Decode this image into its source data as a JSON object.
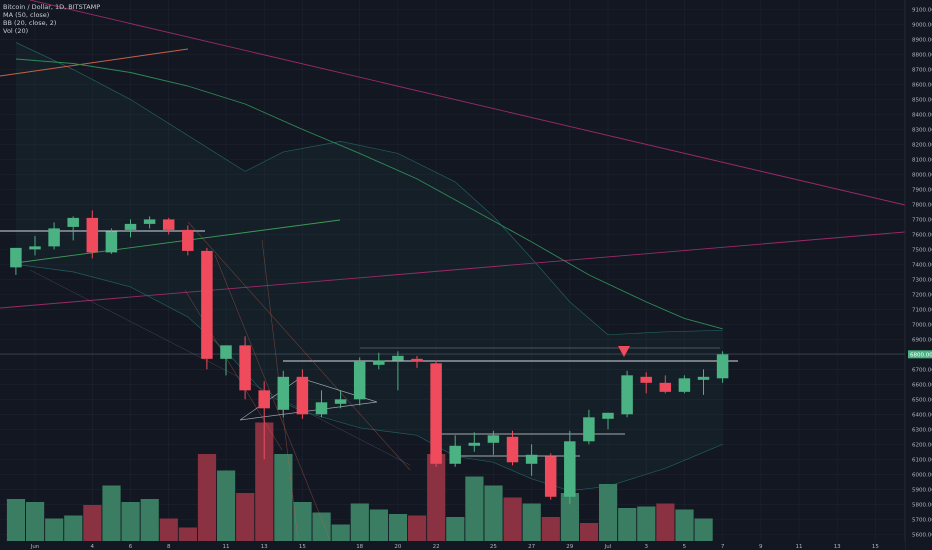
{
  "header": {
    "symbol_line": "Bitcoin / Dollar, 1D, BITSTAMP",
    "indicators": [
      "MA (50, close)",
      "BB (20, close, 2)",
      "Vol (20)"
    ]
  },
  "colors": {
    "background": "#131722",
    "grid": "#1e2230",
    "up": "#4bb283",
    "down": "#ef4b5d",
    "vol_up": "#3b7d62",
    "vol_down": "#8a3242",
    "ma": "#2e8b57",
    "bb": "#2a7a74",
    "trend_pink": "#9a2a6a",
    "trend_orange": "#c8604a",
    "trend_green": "#3d9a55",
    "level": "#d7d9df",
    "marker": "#ef4b5d",
    "last_price_bg": "#4bb283"
  },
  "chart_data": {
    "type": "candlestick",
    "y_axis": {
      "ticks": [
        5600,
        5700,
        5800,
        5900,
        6000,
        6100,
        6200,
        6300,
        6400,
        6500,
        6600,
        6700,
        6800,
        6900,
        7000,
        7100,
        7200,
        7300,
        7400,
        7500,
        7600,
        7700,
        7800,
        7900,
        8000,
        8100,
        8200,
        8300,
        8400,
        8500,
        8600,
        8700,
        8800,
        8900,
        9000,
        9100
      ],
      "range": [
        5555,
        9150
      ]
    },
    "x_axis": {
      "tick_labels": [
        {
          "label": "Jun",
          "day": 0
        },
        {
          "label": "4",
          "day": 3
        },
        {
          "label": "6",
          "day": 5
        },
        {
          "label": "8",
          "day": 7
        },
        {
          "label": "11",
          "day": 10
        },
        {
          "label": "13",
          "day": 12
        },
        {
          "label": "15",
          "day": 14
        },
        {
          "label": "18",
          "day": 17
        },
        {
          "label": "20",
          "day": 19
        },
        {
          "label": "22",
          "day": 21
        },
        {
          "label": "25",
          "day": 24
        },
        {
          "label": "27",
          "day": 26
        },
        {
          "label": "29",
          "day": 28
        },
        {
          "label": "Jul",
          "day": 30
        },
        {
          "label": "3",
          "day": 32
        },
        {
          "label": "5",
          "day": 34
        },
        {
          "label": "7",
          "day": 36
        },
        {
          "label": "9",
          "day": 38
        },
        {
          "label": "11",
          "day": 40
        },
        {
          "label": "13",
          "day": 42
        },
        {
          "label": "15",
          "day": 44
        }
      ]
    },
    "candles": [
      {
        "day": -1,
        "o": 7380,
        "h": 7480,
        "l": 7330,
        "c": 7510
      },
      {
        "day": 0,
        "o": 7500,
        "h": 7590,
        "l": 7460,
        "c": 7520
      },
      {
        "day": 1,
        "o": 7520,
        "h": 7680,
        "l": 7500,
        "c": 7640
      },
      {
        "day": 2,
        "o": 7650,
        "h": 7720,
        "l": 7560,
        "c": 7710
      },
      {
        "day": 3,
        "o": 7710,
        "h": 7760,
        "l": 7440,
        "c": 7480
      },
      {
        "day": 4,
        "o": 7480,
        "h": 7640,
        "l": 7470,
        "c": 7620
      },
      {
        "day": 5,
        "o": 7630,
        "h": 7700,
        "l": 7580,
        "c": 7670
      },
      {
        "day": 6,
        "o": 7670,
        "h": 7720,
        "l": 7640,
        "c": 7700
      },
      {
        "day": 7,
        "o": 7700,
        "h": 7710,
        "l": 7600,
        "c": 7630
      },
      {
        "day": 8,
        "o": 7630,
        "h": 7660,
        "l": 7460,
        "c": 7490
      },
      {
        "day": 9,
        "o": 7490,
        "h": 7510,
        "l": 6700,
        "c": 6770
      },
      {
        "day": 10,
        "o": 6770,
        "h": 6860,
        "l": 6660,
        "c": 6860
      },
      {
        "day": 11,
        "o": 6860,
        "h": 6920,
        "l": 6500,
        "c": 6560
      },
      {
        "day": 12,
        "o": 6560,
        "h": 6620,
        "l": 6100,
        "c": 6440
      },
      {
        "day": 13,
        "o": 6430,
        "h": 6690,
        "l": 6380,
        "c": 6650
      },
      {
        "day": 14,
        "o": 6650,
        "h": 6700,
        "l": 6370,
        "c": 6400
      },
      {
        "day": 15,
        "o": 6400,
        "h": 6560,
        "l": 6380,
        "c": 6480
      },
      {
        "day": 16,
        "o": 6470,
        "h": 6560,
        "l": 6440,
        "c": 6500
      },
      {
        "day": 17,
        "o": 6500,
        "h": 6780,
        "l": 6460,
        "c": 6750
      },
      {
        "day": 18,
        "o": 6730,
        "h": 6810,
        "l": 6700,
        "c": 6760
      },
      {
        "day": 19,
        "o": 6760,
        "h": 6820,
        "l": 6560,
        "c": 6790
      },
      {
        "day": 20,
        "o": 6770,
        "h": 6790,
        "l": 6710,
        "c": 6750
      },
      {
        "day": 21,
        "o": 6740,
        "h": 6760,
        "l": 6050,
        "c": 6070
      },
      {
        "day": 22,
        "o": 6070,
        "h": 6260,
        "l": 6050,
        "c": 6190
      },
      {
        "day": 23,
        "o": 6190,
        "h": 6280,
        "l": 6150,
        "c": 6210
      },
      {
        "day": 24,
        "o": 6210,
        "h": 6290,
        "l": 6130,
        "c": 6260
      },
      {
        "day": 25,
        "o": 6250,
        "h": 6290,
        "l": 6060,
        "c": 6080
      },
      {
        "day": 26,
        "o": 6070,
        "h": 6200,
        "l": 5990,
        "c": 6130
      },
      {
        "day": 27,
        "o": 6120,
        "h": 6140,
        "l": 5830,
        "c": 5850
      },
      {
        "day": 28,
        "o": 5850,
        "h": 6290,
        "l": 5800,
        "c": 6220
      },
      {
        "day": 29,
        "o": 6220,
        "h": 6430,
        "l": 6200,
        "c": 6380
      },
      {
        "day": 30,
        "o": 6370,
        "h": 6410,
        "l": 6300,
        "c": 6410
      },
      {
        "day": 31,
        "o": 6400,
        "h": 6690,
        "l": 6380,
        "c": 6660
      },
      {
        "day": 32,
        "o": 6650,
        "h": 6680,
        "l": 6540,
        "c": 6610
      },
      {
        "day": 33,
        "o": 6610,
        "h": 6660,
        "l": 6540,
        "c": 6550
      },
      {
        "day": 34,
        "o": 6550,
        "h": 6660,
        "l": 6540,
        "c": 6640
      },
      {
        "day": 35,
        "o": 6630,
        "h": 6700,
        "l": 6530,
        "c": 6650
      },
      {
        "day": 36,
        "o": 6640,
        "h": 6820,
        "l": 6610,
        "c": 6800
      }
    ],
    "volume": [
      {
        "day": -1,
        "v": 0.28,
        "up": true
      },
      {
        "day": 0,
        "v": 0.26,
        "up": true
      },
      {
        "day": 1,
        "v": 0.15,
        "up": true
      },
      {
        "day": 2,
        "v": 0.17,
        "up": true
      },
      {
        "day": 3,
        "v": 0.24,
        "up": false
      },
      {
        "day": 4,
        "v": 0.37,
        "up": true
      },
      {
        "day": 5,
        "v": 0.26,
        "up": true
      },
      {
        "day": 6,
        "v": 0.28,
        "up": true
      },
      {
        "day": 7,
        "v": 0.15,
        "up": false
      },
      {
        "day": 8,
        "v": 0.09,
        "up": false
      },
      {
        "day": 9,
        "v": 0.58,
        "up": false
      },
      {
        "day": 10,
        "v": 0.47,
        "up": true
      },
      {
        "day": 11,
        "v": 0.32,
        "up": false
      },
      {
        "day": 12,
        "v": 0.79,
        "up": false
      },
      {
        "day": 13,
        "v": 0.58,
        "up": true
      },
      {
        "day": 14,
        "v": 0.26,
        "up": true
      },
      {
        "day": 15,
        "v": 0.19,
        "up": true
      },
      {
        "day": 16,
        "v": 0.11,
        "up": true
      },
      {
        "day": 17,
        "v": 0.25,
        "up": true
      },
      {
        "day": 18,
        "v": 0.21,
        "up": true
      },
      {
        "day": 19,
        "v": 0.18,
        "up": true
      },
      {
        "day": 20,
        "v": 0.17,
        "up": false
      },
      {
        "day": 21,
        "v": 0.58,
        "up": false
      },
      {
        "day": 22,
        "v": 0.16,
        "up": true
      },
      {
        "day": 23,
        "v": 0.43,
        "up": true
      },
      {
        "day": 24,
        "v": 0.37,
        "up": true
      },
      {
        "day": 25,
        "v": 0.29,
        "up": false
      },
      {
        "day": 26,
        "v": 0.25,
        "up": true
      },
      {
        "day": 27,
        "v": 0.16,
        "up": false
      },
      {
        "day": 28,
        "v": 0.32,
        "up": true
      },
      {
        "day": 29,
        "v": 0.12,
        "up": false
      },
      {
        "day": 30,
        "v": 0.38,
        "up": true
      },
      {
        "day": 31,
        "v": 0.22,
        "up": true
      },
      {
        "day": 32,
        "v": 0.23,
        "up": true
      },
      {
        "day": 33,
        "v": 0.25,
        "up": false
      },
      {
        "day": 34,
        "v": 0.21,
        "up": true
      },
      {
        "day": 35,
        "v": 0.15,
        "up": true
      }
    ],
    "ma50": [
      {
        "day": -1,
        "y": 8770
      },
      {
        "day": 2,
        "y": 8740
      },
      {
        "day": 5,
        "y": 8680
      },
      {
        "day": 8,
        "y": 8590
      },
      {
        "day": 11,
        "y": 8470
      },
      {
        "day": 14,
        "y": 8300
      },
      {
        "day": 17,
        "y": 8140
      },
      {
        "day": 20,
        "y": 7970
      },
      {
        "day": 23,
        "y": 7760
      },
      {
        "day": 26,
        "y": 7550
      },
      {
        "day": 29,
        "y": 7330
      },
      {
        "day": 32,
        "y": 7150
      },
      {
        "day": 34,
        "y": 7040
      },
      {
        "day": 36,
        "y": 6970
      }
    ],
    "bb_upper": [
      {
        "day": -1,
        "y": 8880
      },
      {
        "day": 2,
        "y": 8700
      },
      {
        "day": 5,
        "y": 8500
      },
      {
        "day": 7,
        "y": 8340
      },
      {
        "day": 9,
        "y": 8180
      },
      {
        "day": 11,
        "y": 8020
      },
      {
        "day": 13,
        "y": 8150
      },
      {
        "day": 16,
        "y": 8220
      },
      {
        "day": 19,
        "y": 8140
      },
      {
        "day": 22,
        "y": 7950
      },
      {
        "day": 24,
        "y": 7720
      },
      {
        "day": 26,
        "y": 7440
      },
      {
        "day": 28,
        "y": 7150
      },
      {
        "day": 30,
        "y": 6930
      },
      {
        "day": 33,
        "y": 6950
      },
      {
        "day": 36,
        "y": 6960
      }
    ],
    "bb_lower": [
      {
        "day": -1,
        "y": 7400
      },
      {
        "day": 2,
        "y": 7350
      },
      {
        "day": 5,
        "y": 7250
      },
      {
        "day": 8,
        "y": 7050
      },
      {
        "day": 10,
        "y": 6820
      },
      {
        "day": 12,
        "y": 6540
      },
      {
        "day": 14,
        "y": 6420
      },
      {
        "day": 17,
        "y": 6310
      },
      {
        "day": 20,
        "y": 6260
      },
      {
        "day": 22,
        "y": 6120
      },
      {
        "day": 24,
        "y": 6080
      },
      {
        "day": 26,
        "y": 5970
      },
      {
        "day": 28,
        "y": 5890
      },
      {
        "day": 30,
        "y": 5920
      },
      {
        "day": 33,
        "y": 6040
      },
      {
        "day": 36,
        "y": 6200
      }
    ],
    "last_price": 6800
  }
}
